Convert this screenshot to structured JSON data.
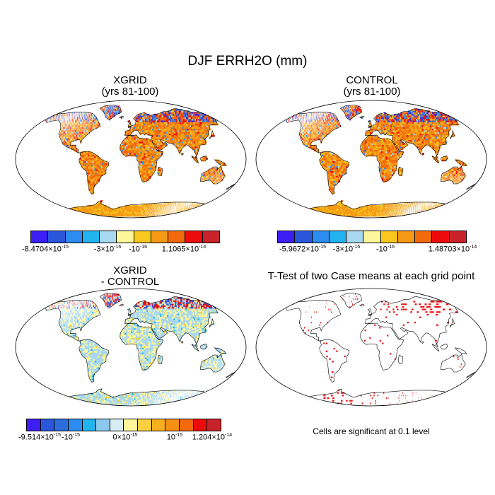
{
  "main_title": "DJF ERRH2O (mm)",
  "panels": {
    "p1": {
      "title": "XGRID",
      "subtitle": "(yrs 81-100)"
    },
    "p2": {
      "title": "CONTROL",
      "subtitle": "(yrs 81-100)"
    },
    "p3": {
      "title": "XGRID",
      "subtitle": "- CONTROL"
    },
    "p4": {
      "title": "T-Test of two Case means at each grid point",
      "note": "Cells are significant at 0.1 level"
    }
  },
  "colorbars": {
    "cb1": {
      "colors": [
        "#3d1ef5",
        "#2a56dc",
        "#2c8cf0",
        "#22b4ee",
        "#a8d8f0",
        "#fdf69a",
        "#f8c81e",
        "#f59a14",
        "#f26a0c",
        "#ee0b0b",
        "#c8232a"
      ],
      "labels": [
        {
          "mant": "-8.4704×10",
          "exp": "-15"
        },
        {
          "mant": "-3×10",
          "exp": "-16"
        },
        {
          "mant": "-10",
          "exp": "-16"
        },
        {
          "mant": "1.1065×10",
          "exp": "-14"
        }
      ]
    },
    "cb2": {
      "colors": [
        "#3d1ef5",
        "#2a56dc",
        "#2c8cf0",
        "#22b4ee",
        "#a8d8f0",
        "#fdf69a",
        "#f8c81e",
        "#f59a14",
        "#f26a0c",
        "#ee0b0b",
        "#c8232a"
      ],
      "labels": [
        {
          "mant": "-5.9672×10",
          "exp": "-15"
        },
        {
          "mant": "-3×10",
          "exp": "-16"
        },
        {
          "mant": "-10",
          "exp": "-16"
        },
        {
          "mant": "1.48703×10",
          "exp": "-14"
        }
      ]
    },
    "cb3": {
      "colors": [
        "#3d1ef5",
        "#2a56dc",
        "#2c6cdc",
        "#2c8cf0",
        "#22b4ee",
        "#8cc8ec",
        "#d8ecf4",
        "#fdf69a",
        "#f8d040",
        "#f8b01e",
        "#f59014",
        "#f26a0c",
        "#ee0b0b",
        "#c8232a"
      ],
      "labels": [
        {
          "mant": "-9.514×10",
          "exp": "-15"
        },
        {
          "mant": "-10",
          "exp": "-15"
        },
        {
          "mant": "0×10",
          "exp": "-15"
        },
        {
          "mant": "10",
          "exp": "-15"
        },
        {
          "mant": "1.204×10",
          "exp": "-14"
        }
      ]
    }
  },
  "chart_data": [
    {
      "type": "heatmap",
      "title": "XGRID",
      "subtitle": "(yrs 81-100)",
      "colorbar_min_label": "-8.4704×10^-15",
      "colorbar_max_label": "1.1065×10^-14",
      "dominant_colors": [
        "#f59a14",
        "#f26a0c"
      ]
    },
    {
      "type": "heatmap",
      "title": "CONTROL",
      "subtitle": "(yrs 81-100)",
      "colorbar_min_label": "-5.9672×10^-15",
      "colorbar_max_label": "1.48703×10^-14",
      "dominant_colors": [
        "#f59a14",
        "#f26a0c"
      ]
    },
    {
      "type": "heatmap",
      "title": "XGRID - CONTROL",
      "colorbar_min_label": "-9.514×10^-15",
      "colorbar_max_label": "1.204×10^-14",
      "dominant_colors": [
        "#a8d8f0",
        "#fdf69a"
      ]
    },
    {
      "type": "scatter",
      "title": "T-Test of two Case means at each grid point",
      "marker_color": "#ee0b0b",
      "note": "Cells are significant at 0.1 level"
    }
  ]
}
